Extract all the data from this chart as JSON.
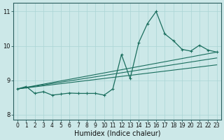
{
  "xlabel": "Humidex (Indice chaleur)",
  "bg_color": "#cce8e8",
  "line_color": "#1a6e5e",
  "xlim": [
    -0.5,
    23.5
  ],
  "ylim": [
    7.85,
    11.25
  ],
  "xticks": [
    0,
    1,
    2,
    3,
    4,
    5,
    6,
    7,
    8,
    9,
    10,
    11,
    12,
    13,
    14,
    15,
    16,
    17,
    18,
    19,
    20,
    21,
    22,
    23
  ],
  "yticks": [
    8,
    9,
    10,
    11
  ],
  "series1_x": [
    0,
    1,
    2,
    3,
    4,
    5,
    6,
    7,
    8,
    9,
    10,
    11,
    12,
    13,
    14,
    15,
    16,
    17,
    18,
    19,
    20,
    21,
    22,
    23
  ],
  "series1_y": [
    8.75,
    8.82,
    8.62,
    8.67,
    8.57,
    8.6,
    8.63,
    8.62,
    8.62,
    8.62,
    8.57,
    8.75,
    9.75,
    9.05,
    10.1,
    10.65,
    11.0,
    10.35,
    10.15,
    9.9,
    9.85,
    10.02,
    9.88,
    9.82
  ],
  "trend1_x0": 0,
  "trend1_y0": 8.75,
  "trend1_x1": 23,
  "trend1_y1": 9.82,
  "trend2_x0": 0,
  "trend2_y0": 8.75,
  "trend2_x1": 23,
  "trend2_y1": 9.65,
  "trend3_x0": 0,
  "trend3_y0": 8.75,
  "trend3_x1": 23,
  "trend3_y1": 9.45,
  "grid_color": "#aad4d4",
  "xlabel_fontsize": 7,
  "tick_fontsize": 5.5
}
